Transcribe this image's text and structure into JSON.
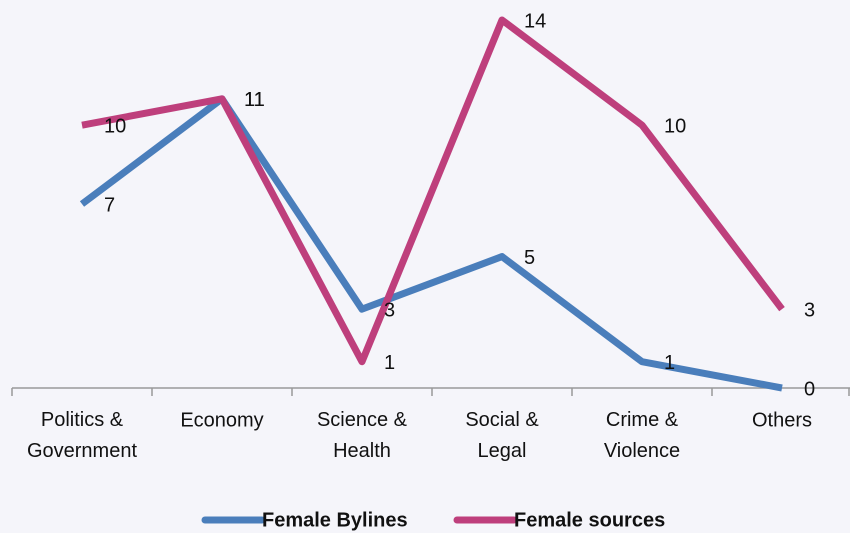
{
  "chart_data": {
    "type": "line",
    "categories": [
      "Politics & Government",
      "Economy",
      "Science & Health",
      "Social & Legal",
      "Crime & Violence",
      "Others"
    ],
    "series": [
      {
        "name": "Female Bylines",
        "color": "#4a7ebb",
        "values": [
          7,
          11,
          3,
          5,
          1,
          0
        ]
      },
      {
        "name": "Female sources",
        "color": "#be3f7c",
        "values": [
          10,
          11,
          1,
          14,
          10,
          3
        ]
      }
    ],
    "ylim": [
      0,
      14
    ],
    "legend": "bottom"
  }
}
